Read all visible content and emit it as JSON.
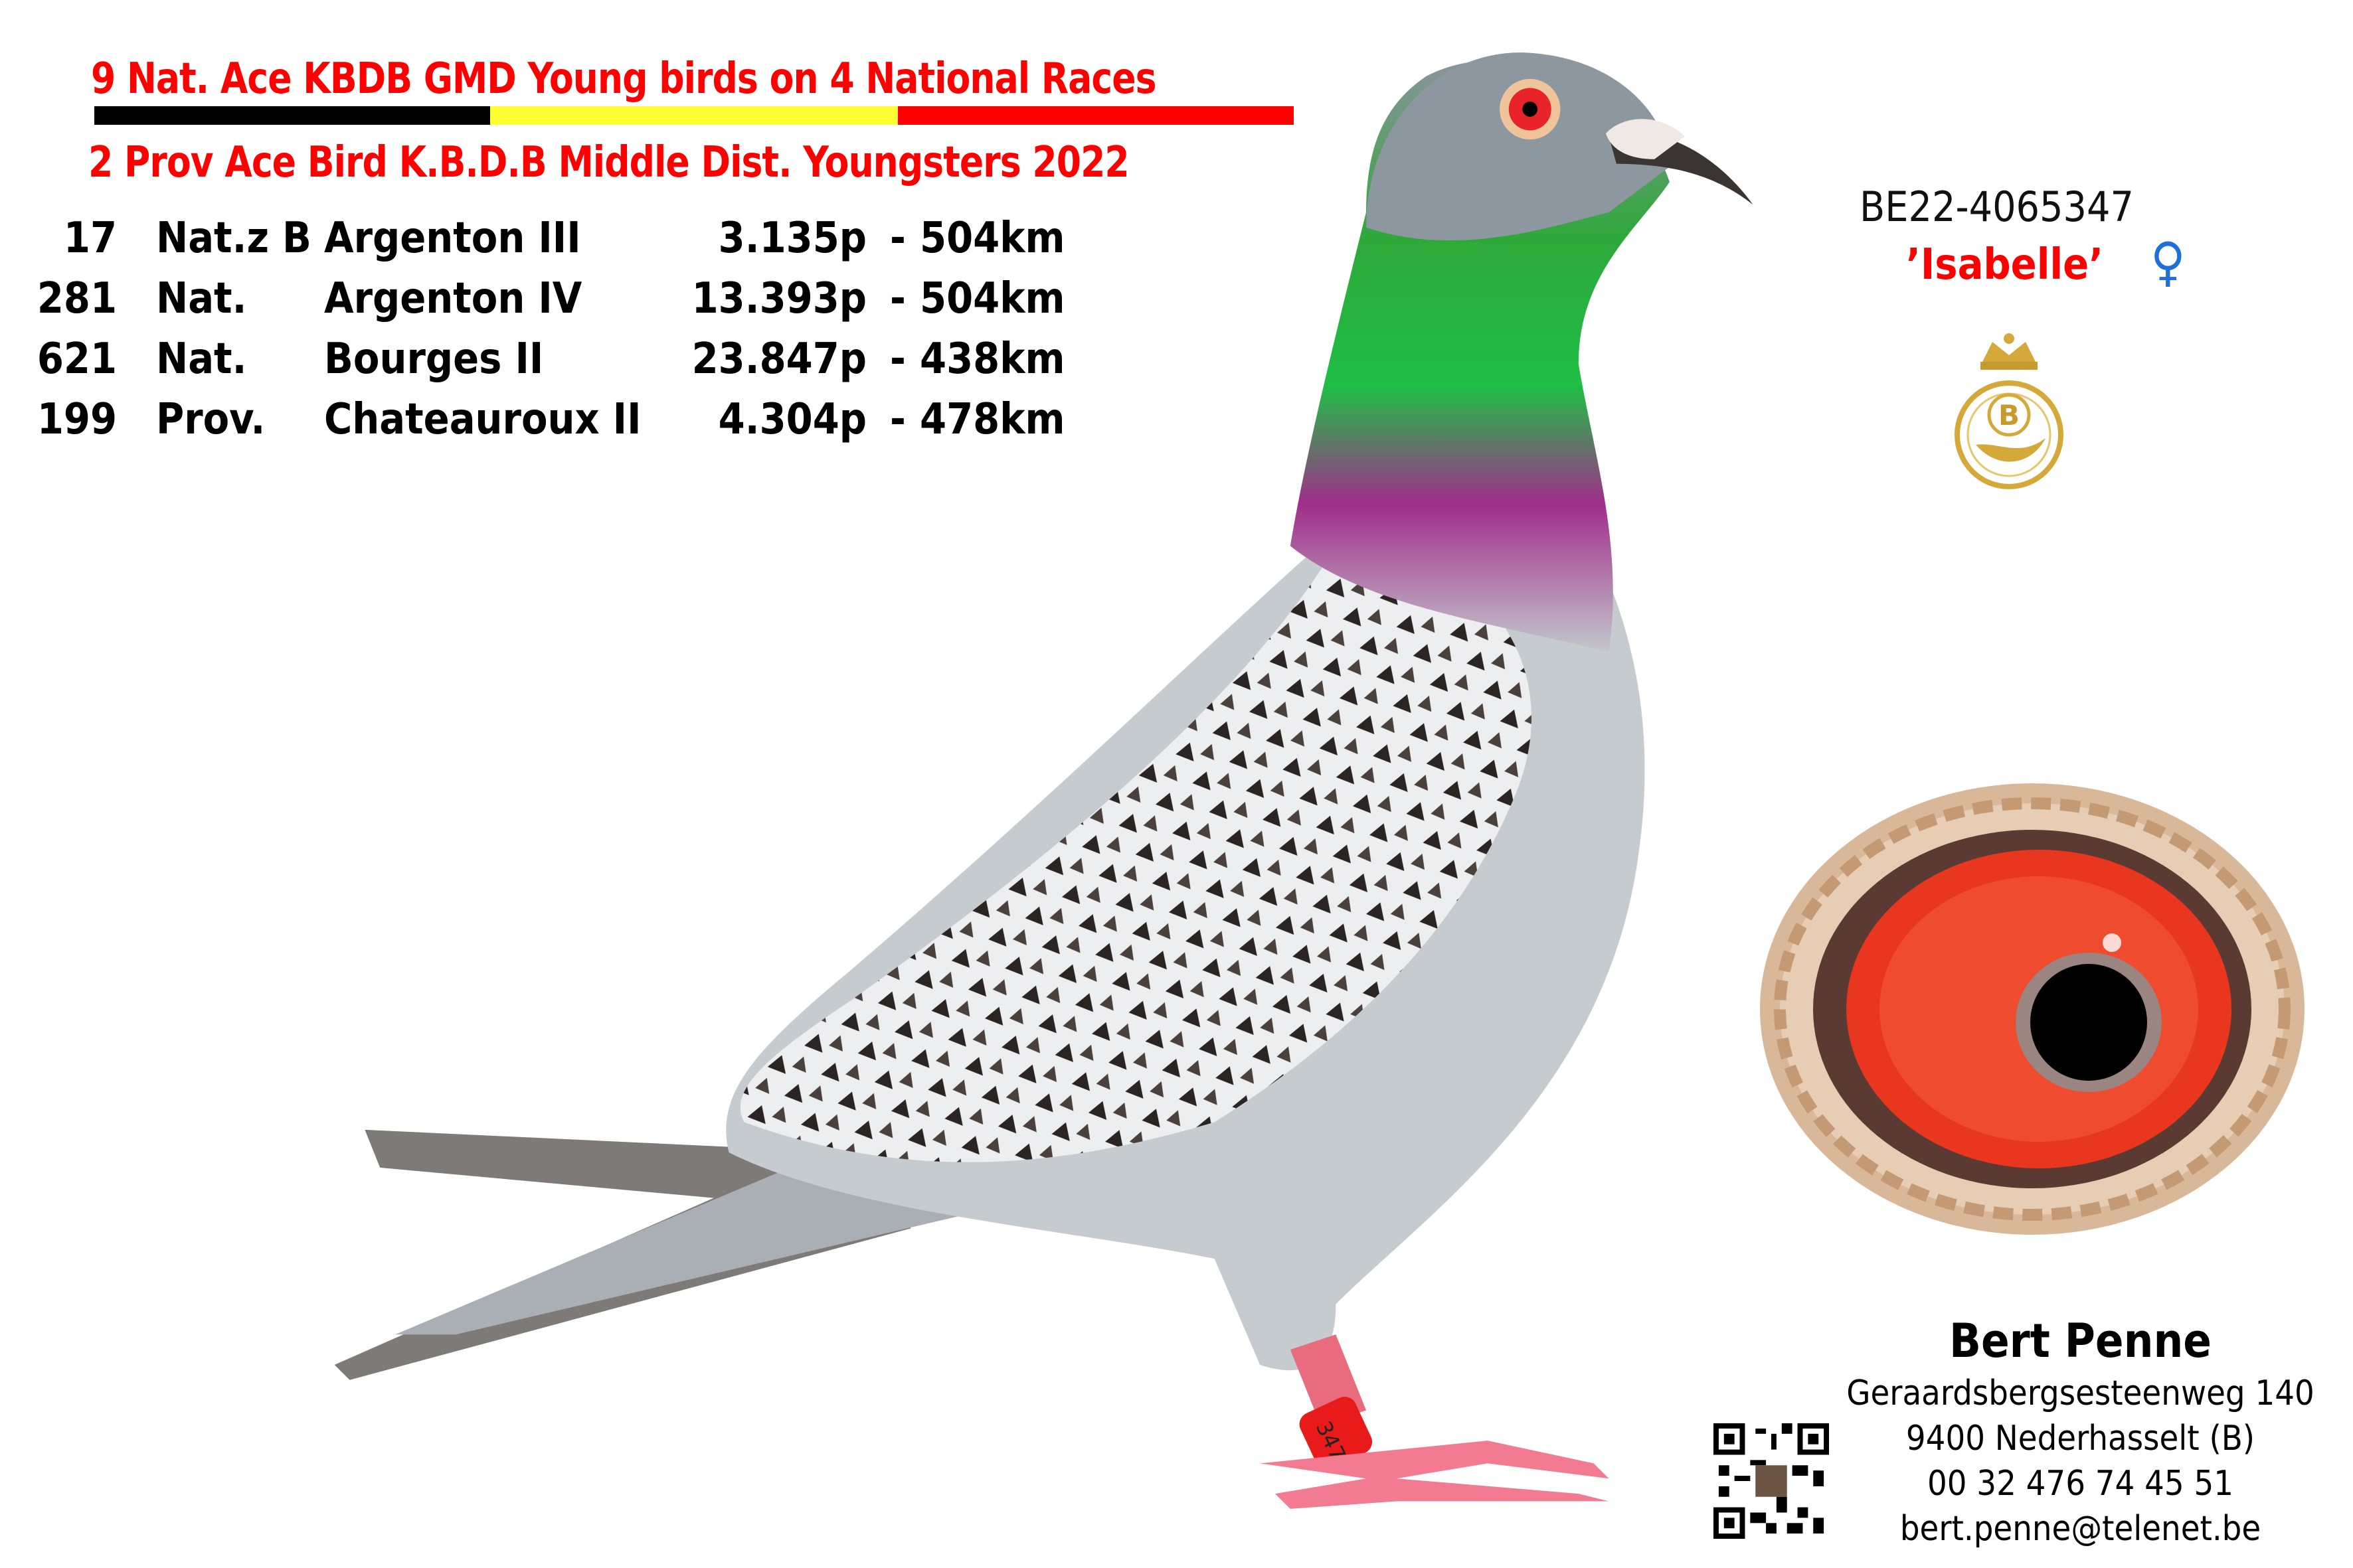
{
  "header": {
    "title": "9 Nat. Ace KBDB GMD Young birds on 4 National Races",
    "subtitle": "2 Prov Ace Bird K.B.D.B  Middle Dist. Youngsters 2022",
    "flag_colors": [
      "#000000",
      "#ffff33",
      "#ff0000"
    ]
  },
  "results": [
    {
      "rank": "17",
      "category": "Nat.z B",
      "race": "Argenton III",
      "points": "3.135p",
      "dash": "-",
      "distance": "504km"
    },
    {
      "rank": "281",
      "category": "Nat.",
      "race": "Argenton IV",
      "points": "13.393p",
      "dash": "-",
      "distance": "504km"
    },
    {
      "rank": "621",
      "category": "Nat.",
      "race": "Bourges II",
      "points": "23.847p",
      "dash": "-",
      "distance": "438km"
    },
    {
      "rank": "199",
      "category": "Prov.",
      "race": "Chateauroux II",
      "points": "4.304p",
      "dash": "-",
      "distance": "478km"
    }
  ],
  "bird": {
    "ring": "BE22-4065347",
    "name": "’Isabelle’",
    "sex_symbol": "♀",
    "leg_band": "347"
  },
  "logo": {
    "letter": "B"
  },
  "contact": {
    "owner": "Bert Penne",
    "street": "Geraardsbergsesteenweg 140",
    "city": "9400  Nederhasselt (B)",
    "phone": "00 32 476 74 45 51",
    "email": "bert.penne@telenet.be"
  }
}
